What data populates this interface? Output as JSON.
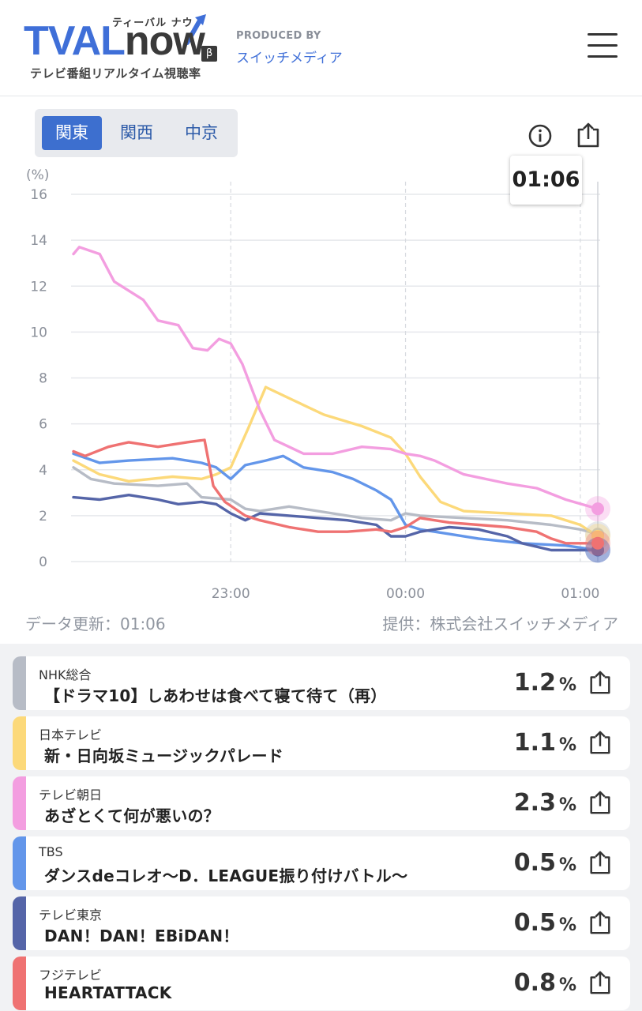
{
  "header": {
    "logo_tval": "TVAL",
    "logo_now": "now",
    "logo_beta": "β",
    "logo_kana": "ティーバル ナウ",
    "logo_sub": "テレビ番組リアルタイム視聴率",
    "produced_by": "PRODUCED BY",
    "producer": "スイッチメディア",
    "menu_icon": "hamburger-menu-icon"
  },
  "regions": [
    {
      "label": "関東",
      "active": true
    },
    {
      "label": "関西",
      "active": false
    },
    {
      "label": "中京",
      "active": false
    }
  ],
  "icons": {
    "info": "info-icon",
    "share": "share-icon"
  },
  "tooltip_time": "01:06",
  "colors": {
    "nhk": "#b7bcc6",
    "ntv": "#fcd97a",
    "ex": "#f39ee0",
    "tbs": "#6396ea",
    "tx": "#5565a8",
    "cx": "#ef7272",
    "accent": "#3d6fcf"
  },
  "chart_data": {
    "type": "line",
    "ylabel": "(%)",
    "ylim": [
      0,
      16
    ],
    "yticks": [
      "0",
      "2",
      "4",
      "6",
      "8",
      "10",
      "12",
      "14",
      "16"
    ],
    "xticks": [
      "23:00",
      "00:00",
      "01:00"
    ],
    "x_range": [
      "22:06",
      "01:06"
    ],
    "grid": true,
    "series": [
      {
        "name": "NHK総合",
        "color": "#b7bcc6",
        "points": [
          [
            "22:06",
            4.1
          ],
          [
            "22:12",
            3.6
          ],
          [
            "22:20",
            3.4
          ],
          [
            "22:35",
            3.3
          ],
          [
            "22:45",
            3.4
          ],
          [
            "22:50",
            2.8
          ],
          [
            "23:00",
            2.7
          ],
          [
            "23:05",
            2.3
          ],
          [
            "23:10",
            2.2
          ],
          [
            "23:20",
            2.4
          ],
          [
            "23:35",
            2.1
          ],
          [
            "23:45",
            1.9
          ],
          [
            "23:55",
            1.8
          ],
          [
            "00:00",
            2.1
          ],
          [
            "00:05",
            2.0
          ],
          [
            "00:20",
            1.9
          ],
          [
            "00:35",
            1.8
          ],
          [
            "00:50",
            1.6
          ],
          [
            "01:00",
            1.4
          ],
          [
            "01:06",
            1.2
          ]
        ]
      },
      {
        "name": "日本テレビ",
        "color": "#fcd97a",
        "points": [
          [
            "22:06",
            4.4
          ],
          [
            "22:15",
            3.8
          ],
          [
            "22:25",
            3.5
          ],
          [
            "22:40",
            3.7
          ],
          [
            "22:50",
            3.6
          ],
          [
            "22:55",
            3.8
          ],
          [
            "23:00",
            4.1
          ],
          [
            "23:06",
            5.8
          ],
          [
            "23:12",
            7.6
          ],
          [
            "23:22",
            7.0
          ],
          [
            "23:32",
            6.4
          ],
          [
            "23:45",
            5.9
          ],
          [
            "23:55",
            5.4
          ],
          [
            "00:00",
            4.7
          ],
          [
            "00:05",
            3.7
          ],
          [
            "00:12",
            2.6
          ],
          [
            "00:20",
            2.2
          ],
          [
            "00:35",
            2.1
          ],
          [
            "00:50",
            2.0
          ],
          [
            "01:00",
            1.6
          ],
          [
            "01:06",
            1.1
          ]
        ]
      },
      {
        "name": "テレビ朝日",
        "color": "#f39ee0",
        "points": [
          [
            "22:06",
            13.4
          ],
          [
            "22:08",
            13.7
          ],
          [
            "22:15",
            13.4
          ],
          [
            "22:20",
            12.2
          ],
          [
            "22:30",
            11.4
          ],
          [
            "22:35",
            10.5
          ],
          [
            "22:42",
            10.3
          ],
          [
            "22:47",
            9.3
          ],
          [
            "22:52",
            9.2
          ],
          [
            "22:56",
            9.7
          ],
          [
            "23:00",
            9.5
          ],
          [
            "23:04",
            8.6
          ],
          [
            "23:10",
            6.6
          ],
          [
            "23:15",
            5.3
          ],
          [
            "23:20",
            5.0
          ],
          [
            "23:25",
            4.7
          ],
          [
            "23:35",
            4.7
          ],
          [
            "23:45",
            5.0
          ],
          [
            "23:55",
            4.9
          ],
          [
            "00:00",
            4.7
          ],
          [
            "00:05",
            4.6
          ],
          [
            "00:10",
            4.4
          ],
          [
            "00:20",
            3.8
          ],
          [
            "00:35",
            3.4
          ],
          [
            "00:45",
            3.2
          ],
          [
            "00:55",
            2.7
          ],
          [
            "01:06",
            2.3
          ]
        ]
      },
      {
        "name": "TBS",
        "color": "#6396ea",
        "points": [
          [
            "22:06",
            4.7
          ],
          [
            "22:15",
            4.3
          ],
          [
            "22:25",
            4.4
          ],
          [
            "22:40",
            4.5
          ],
          [
            "22:50",
            4.3
          ],
          [
            "22:55",
            4.1
          ],
          [
            "23:00",
            3.6
          ],
          [
            "23:05",
            4.2
          ],
          [
            "23:12",
            4.4
          ],
          [
            "23:18",
            4.6
          ],
          [
            "23:25",
            4.1
          ],
          [
            "23:35",
            3.9
          ],
          [
            "23:42",
            3.6
          ],
          [
            "23:50",
            3.1
          ],
          [
            "23:55",
            2.7
          ],
          [
            "00:00",
            1.6
          ],
          [
            "00:05",
            1.4
          ],
          [
            "00:15",
            1.2
          ],
          [
            "00:25",
            1.0
          ],
          [
            "00:40",
            0.8
          ],
          [
            "00:55",
            0.7
          ],
          [
            "01:06",
            0.5
          ]
        ]
      },
      {
        "name": "テレビ東京",
        "color": "#5565a8",
        "points": [
          [
            "22:06",
            2.8
          ],
          [
            "22:15",
            2.7
          ],
          [
            "22:25",
            2.9
          ],
          [
            "22:35",
            2.7
          ],
          [
            "22:42",
            2.5
          ],
          [
            "22:50",
            2.6
          ],
          [
            "22:55",
            2.5
          ],
          [
            "23:00",
            2.1
          ],
          [
            "23:05",
            1.8
          ],
          [
            "23:10",
            2.1
          ],
          [
            "23:20",
            2.0
          ],
          [
            "23:30",
            1.9
          ],
          [
            "23:40",
            1.8
          ],
          [
            "23:50",
            1.6
          ],
          [
            "23:55",
            1.1
          ],
          [
            "00:00",
            1.1
          ],
          [
            "00:05",
            1.3
          ],
          [
            "00:15",
            1.5
          ],
          [
            "00:25",
            1.4
          ],
          [
            "00:35",
            1.1
          ],
          [
            "00:40",
            0.8
          ],
          [
            "00:50",
            0.5
          ],
          [
            "01:00",
            0.5
          ],
          [
            "01:06",
            0.5
          ]
        ]
      },
      {
        "name": "フジテレビ",
        "color": "#ef7272",
        "points": [
          [
            "22:06",
            4.8
          ],
          [
            "22:10",
            4.6
          ],
          [
            "22:18",
            5.0
          ],
          [
            "22:25",
            5.2
          ],
          [
            "22:35",
            5.0
          ],
          [
            "22:45",
            5.2
          ],
          [
            "22:51",
            5.3
          ],
          [
            "22:54",
            3.3
          ],
          [
            "22:58",
            2.6
          ],
          [
            "23:05",
            2.0
          ],
          [
            "23:10",
            1.8
          ],
          [
            "23:20",
            1.5
          ],
          [
            "23:30",
            1.3
          ],
          [
            "23:40",
            1.3
          ],
          [
            "23:50",
            1.4
          ],
          [
            "23:55",
            1.3
          ],
          [
            "00:00",
            1.5
          ],
          [
            "00:05",
            1.9
          ],
          [
            "00:15",
            1.7
          ],
          [
            "00:25",
            1.6
          ],
          [
            "00:35",
            1.5
          ],
          [
            "00:45",
            1.3
          ],
          [
            "00:50",
            1.0
          ],
          [
            "00:55",
            0.8
          ],
          [
            "01:06",
            0.8
          ]
        ]
      }
    ]
  },
  "footer": {
    "updated": "データ更新：01:06",
    "provider": "提供：株式会社スイッチメディア"
  },
  "programs": [
    {
      "channel": "NHK総合",
      "title": "【ドラマ10】しあわせは食べて寝て待て（再）",
      "rating": "1.2",
      "unit": "%"
    },
    {
      "channel": "日本テレビ",
      "title": "新・日向坂ミュージックパレード",
      "rating": "1.1",
      "unit": "%"
    },
    {
      "channel": "テレビ朝日",
      "title": "あざとくて何が悪いの？",
      "rating": "2.3",
      "unit": "%"
    },
    {
      "channel": "TBS",
      "title": "ダンスdeコレオ〜D．LEAGUE振り付けバトル〜",
      "rating": "0.5",
      "unit": "%"
    },
    {
      "channel": "テレビ東京",
      "title": "DAN！DAN！EBiDAN！",
      "rating": "0.5",
      "unit": "%"
    },
    {
      "channel": "フジテレビ",
      "title": "HEARTATTACK",
      "rating": "0.8",
      "unit": "%"
    }
  ]
}
